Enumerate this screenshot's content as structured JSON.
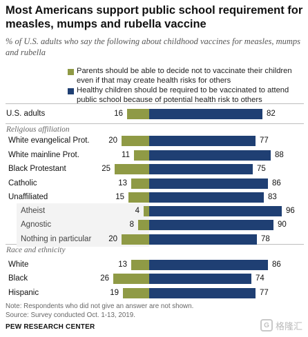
{
  "chart_data": {
    "type": "bar",
    "title": "Most Americans support public school requirement for measles, mumps and rubella vaccine",
    "subtitle": "% of U.S. adults who say the following about childhood vaccines for measles, mumps and rubella",
    "series": [
      {
        "name": "Parents should be able to decide not to vaccinate their children even if that may create health risks for others",
        "color": "#8f9a45",
        "values": [
          16,
          20,
          11,
          25,
          13,
          15,
          4,
          8,
          20,
          13,
          26,
          19
        ]
      },
      {
        "name": "Healthy children should be required to be vaccinated to attend public school because of potential health risk to others",
        "color": "#1f3f73",
        "values": [
          82,
          77,
          88,
          75,
          86,
          83,
          96,
          90,
          78,
          86,
          74,
          77
        ]
      }
    ],
    "categories": [
      "U.S. adults",
      "White evangelical Prot.",
      "White mainline Prot.",
      "Black Protestant",
      "Catholic",
      "Unaffiliated",
      "Atheist",
      "Agnostic",
      "Nothing in particular",
      "White",
      "Black",
      "Hispanic"
    ],
    "sections": [
      {
        "label": "Religious affiliation",
        "starts_at": 1
      },
      {
        "label": "Race and ethnicity",
        "starts_at": 9
      }
    ],
    "sub_categories": [
      "Atheist",
      "Agnostic",
      "Nothing in particular"
    ],
    "legend_placement": "top",
    "grid": false
  },
  "footer": {
    "note": "Note: Respondents who did not give an answer are not shown.",
    "source": "Source: Survey conducted Oct. 1-13, 2019.",
    "org": "PEW RESEARCH CENTER"
  },
  "watermark": {
    "logo_text": "G",
    "text": "格隆汇"
  }
}
